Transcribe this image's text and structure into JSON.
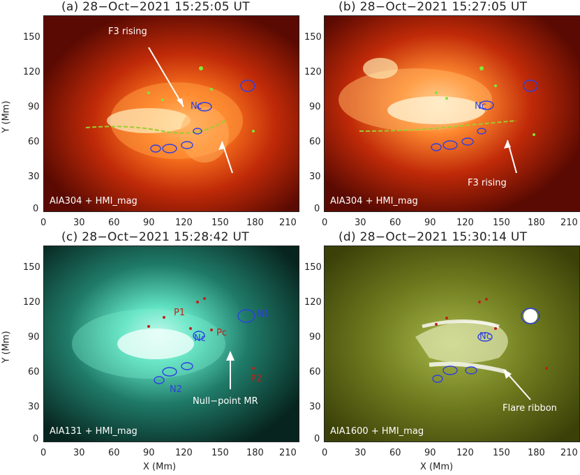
{
  "panels": [
    {
      "title": "(a) 28−Oct−2021 15:25:05 UT",
      "overlay": "AIA304 + HMI_mag",
      "annotation": "F3 rising",
      "contour_label": "Nc"
    },
    {
      "title": "(b) 28−Oct−2021 15:27:05 UT",
      "overlay": "AIA304 + HMI_mag",
      "annotation": "F3 rising",
      "contour_label": "Nc"
    },
    {
      "title": "(c) 28−Oct−2021 15:28:42 UT",
      "overlay": "AIA131 + HMI_mag",
      "annotation": "Null−point MR",
      "labels": {
        "p1": "P1",
        "n1": "N1",
        "pc": "Pc",
        "nc": "Nc",
        "n2": "N2",
        "p2": "P2"
      }
    },
    {
      "title": "(d) 28−Oct−2021 15:30:14 UT",
      "overlay": "AIA1600 + HMI_mag",
      "annotation": "Flare ribbon",
      "contour_label": "Nc"
    }
  ],
  "axes": {
    "xlabel": "X (Mm)",
    "ylabel": "Y (Mm)",
    "xticks": [
      "0",
      "30",
      "60",
      "90",
      "120",
      "150",
      "180",
      "210"
    ],
    "yticks": [
      "0",
      "30",
      "60",
      "90",
      "120",
      "150"
    ]
  },
  "colors": {
    "negative_contour": "#2f3fe0",
    "positive_contour": "#c02018",
    "filament_trace": "#9ccc2c"
  }
}
